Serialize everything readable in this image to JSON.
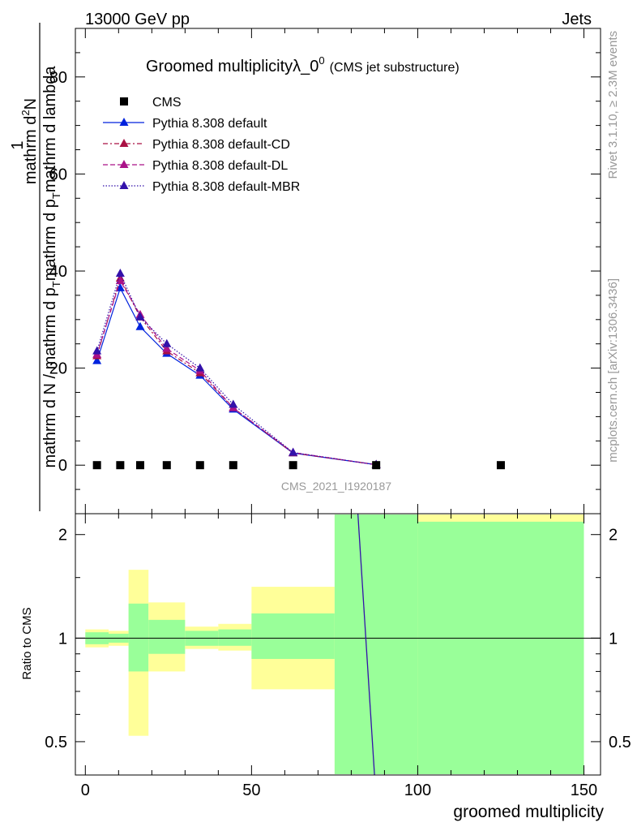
{
  "header": {
    "left": "13000 GeV pp",
    "right": "Jets"
  },
  "side_labels": {
    "rivet": "Rivet 3.1.10, ≥ 2.3M events",
    "mcplots": "mcplots.cern.ch [arXiv:1306.3436]"
  },
  "chart_data": {
    "type": "line",
    "title": "Groomed multiplicityλ_0",
    "title_sup": "0",
    "subtitle": "(CMS jet substructure)",
    "analysis_tag": "CMS_2021_I1920187",
    "ylabel": {
      "numerator_lead": "1",
      "numerator": "mathrm d",
      "numerator_sup": "2",
      "numerator_tail": "N",
      "denominator_lines": [
        "mathrm d N / mathrm d p",
        "mathrm d p",
        "mathrm d lambda"
      ],
      "denominator_sub": "T",
      "full_line": "mathrm d N / mathrm d p_T mathrm d p_T mathrm d lambda"
    },
    "xlabel": "groomed multiplicity",
    "ratio_ylabel": "Ratio to CMS",
    "xlim": [
      -3,
      155
    ],
    "ylim": [
      -10,
      90
    ],
    "ratio_ylim": [
      0.4,
      2.3
    ],
    "x_ticks": [
      0,
      50,
      100,
      150
    ],
    "y_ticks": [
      0,
      20,
      40,
      60,
      80
    ],
    "ratio_ticks": [
      0.5,
      1,
      2
    ],
    "legend": {
      "placement": "top-left",
      "entries": [
        {
          "name": "CMS",
          "style": "square",
          "color": "#000000"
        },
        {
          "name": "Pythia 8.308 default",
          "style": "solid-triangle",
          "color": "#0022dd"
        },
        {
          "name": "Pythia 8.308 default-CD",
          "style": "dashdot-triangle",
          "color": "#aa1144"
        },
        {
          "name": "Pythia 8.308 default-DL",
          "style": "dashed-triangle",
          "color": "#aa1188"
        },
        {
          "name": "Pythia 8.308 default-MBR",
          "style": "dotted-triangle",
          "color": "#3311aa"
        }
      ]
    },
    "data_points": {
      "x": [
        3.5,
        10.5,
        16.5,
        24.5,
        34.5,
        44.5,
        62.5,
        87.5,
        125
      ],
      "y": [
        0,
        0,
        0,
        0,
        0,
        0,
        0,
        0,
        0
      ]
    },
    "series": [
      {
        "name": "Pythia 8.308 default",
        "color": "#0022dd",
        "dash": "",
        "x": [
          3.5,
          10.5,
          16.5,
          24.5,
          34.5,
          44.5,
          62.5,
          87.5
        ],
        "y": [
          21.5,
          36.5,
          28.5,
          23.0,
          18.5,
          11.5,
          2.5,
          0.1
        ]
      },
      {
        "name": "Pythia 8.308 default-CD",
        "color": "#aa1144",
        "dash": "6,3,2,3",
        "x": [
          3.5,
          10.5,
          16.5,
          24.5,
          34.5,
          44.5,
          62.5,
          87.5
        ],
        "y": [
          22.5,
          38.5,
          30.5,
          23.5,
          19.0,
          11.8,
          2.5,
          0.1
        ]
      },
      {
        "name": "Pythia 8.308 default-DL",
        "color": "#aa1188",
        "dash": "6,3",
        "x": [
          3.5,
          10.5,
          16.5,
          24.5,
          34.5,
          44.5,
          62.5,
          87.5
        ],
        "y": [
          22.8,
          38.0,
          31.0,
          24.0,
          19.5,
          11.8,
          2.6,
          0.1
        ]
      },
      {
        "name": "Pythia 8.308 default-MBR",
        "color": "#3311aa",
        "dash": "1.5,2",
        "x": [
          3.5,
          10.5,
          16.5,
          24.5,
          34.5,
          44.5,
          62.5,
          87.5
        ],
        "y": [
          23.5,
          39.5,
          30.5,
          25.0,
          20.0,
          12.5,
          2.6,
          0.1
        ]
      }
    ],
    "ratio_bands": [
      {
        "x0": 0,
        "x1": 7,
        "yel": [
          0.94,
          1.06
        ],
        "grn": [
          0.96,
          1.04
        ]
      },
      {
        "x0": 7,
        "x1": 13,
        "yel": [
          0.95,
          1.05
        ],
        "grn": [
          0.97,
          1.03
        ]
      },
      {
        "x0": 13,
        "x1": 19,
        "yel": [
          0.52,
          1.58
        ],
        "grn": [
          0.8,
          1.26
        ]
      },
      {
        "x0": 19,
        "x1": 30,
        "yel": [
          0.8,
          1.27
        ],
        "grn": [
          0.9,
          1.13
        ]
      },
      {
        "x0": 30,
        "x1": 40,
        "yel": [
          0.93,
          1.08
        ],
        "grn": [
          0.95,
          1.05
        ]
      },
      {
        "x0": 40,
        "x1": 50,
        "yel": [
          0.92,
          1.1
        ],
        "grn": [
          0.95,
          1.06
        ]
      },
      {
        "x0": 50,
        "x1": 75,
        "yel": [
          0.71,
          1.41
        ],
        "grn": [
          0.87,
          1.18
        ]
      },
      {
        "x0": 75,
        "x1": 100,
        "yel": [
          0.4,
          2.3
        ],
        "grn": [
          0.4,
          2.3
        ]
      },
      {
        "x0": 100,
        "x1": 150,
        "yel": [
          0.4,
          2.3
        ],
        "grn": [
          0.4,
          2.18
        ]
      }
    ],
    "ratio_line": {
      "x": [
        82,
        87
      ],
      "y": [
        2.3,
        0.4
      ]
    },
    "colors": {
      "band_yellow": "#ffff99",
      "band_green": "#99ff99",
      "data": "#000000"
    }
  }
}
